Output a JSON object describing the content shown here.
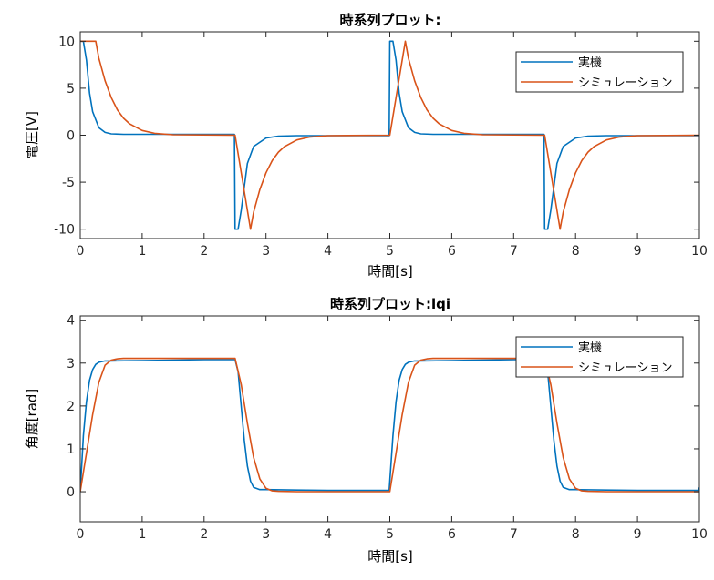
{
  "colors": {
    "real": "#0072BD",
    "sim": "#D95319",
    "axis": "#262626"
  },
  "chart_data": [
    {
      "type": "line",
      "title": "時系列プロット:",
      "xlabel": "時間[s]",
      "ylabel": "電圧[V]",
      "xlim": [
        0,
        10
      ],
      "ylim": [
        -11,
        11
      ],
      "xticks": [
        0,
        1,
        2,
        3,
        4,
        5,
        6,
        7,
        8,
        9,
        10
      ],
      "yticks": [
        -10,
        -5,
        0,
        5,
        10
      ],
      "legend": {
        "position": "top-right",
        "entries": [
          "実機",
          "シミュレーション"
        ]
      },
      "series": [
        {
          "name": "実機",
          "color": "#0072BD",
          "x": [
            0,
            0.05,
            0.1,
            0.15,
            0.2,
            0.3,
            0.4,
            0.5,
            0.7,
            1.0,
            2.49,
            2.5,
            2.55,
            2.6,
            2.7,
            2.8,
            3.0,
            3.2,
            3.5,
            4.99,
            5.0,
            5.05,
            5.1,
            5.15,
            5.2,
            5.3,
            5.4,
            5.5,
            5.7,
            6.0,
            7.49,
            7.5,
            7.55,
            7.6,
            7.7,
            7.8,
            8.0,
            8.2,
            8.5,
            10.0
          ],
          "y": [
            10,
            10,
            8,
            4.5,
            2.5,
            0.8,
            0.3,
            0.15,
            0.1,
            0.1,
            0.1,
            -10,
            -10,
            -8,
            -3,
            -1.2,
            -0.3,
            -0.1,
            -0.05,
            -0.05,
            10,
            10,
            8,
            4.5,
            2.5,
            0.8,
            0.3,
            0.15,
            0.1,
            0.1,
            0.1,
            -10,
            -10,
            -8,
            -3,
            -1.2,
            -0.3,
            -0.1,
            -0.05,
            -0.05
          ]
        },
        {
          "name": "シミュレーション",
          "color": "#D95319",
          "x": [
            0,
            0.25,
            0.3,
            0.4,
            0.5,
            0.6,
            0.7,
            0.8,
            1.0,
            1.2,
            1.5,
            2.5,
            2.75,
            2.8,
            2.9,
            3.0,
            3.1,
            3.2,
            3.3,
            3.5,
            3.7,
            4.0,
            5.0,
            5.25,
            5.3,
            5.4,
            5.5,
            5.6,
            5.7,
            5.8,
            6.0,
            6.2,
            6.5,
            7.5,
            7.75,
            7.8,
            7.9,
            8.0,
            8.1,
            8.2,
            8.3,
            8.5,
            8.7,
            9.0,
            10.0
          ],
          "y": [
            10,
            10,
            8.2,
            5.8,
            4.0,
            2.7,
            1.8,
            1.2,
            0.5,
            0.2,
            0.05,
            0,
            -10,
            -8.2,
            -5.8,
            -4.0,
            -2.7,
            -1.8,
            -1.2,
            -0.5,
            -0.2,
            -0.05,
            0,
            10,
            8.2,
            5.8,
            4.0,
            2.7,
            1.8,
            1.2,
            0.5,
            0.2,
            0.05,
            0,
            -10,
            -8.2,
            -5.8,
            -4.0,
            -2.7,
            -1.8,
            -1.2,
            -0.5,
            -0.2,
            -0.05,
            0
          ]
        }
      ]
    },
    {
      "type": "line",
      "title": "時系列プロット:lqi",
      "xlabel": "時間[s]",
      "ylabel": "角度[rad]",
      "xlim": [
        0,
        10
      ],
      "ylim": [
        -0.7,
        4.1
      ],
      "xticks": [
        0,
        1,
        2,
        3,
        4,
        5,
        6,
        7,
        8,
        9,
        10
      ],
      "yticks": [
        0,
        1,
        2,
        3,
        4
      ],
      "legend": {
        "position": "top-right",
        "entries": [
          "実機",
          "シミュレーション"
        ]
      },
      "series": [
        {
          "name": "実機",
          "color": "#0072BD",
          "x": [
            0,
            0.05,
            0.1,
            0.15,
            0.2,
            0.25,
            0.3,
            0.4,
            0.5,
            1.0,
            2.0,
            2.5,
            2.55,
            2.6,
            2.65,
            2.7,
            2.75,
            2.8,
            2.9,
            3.0,
            3.5,
            4.0,
            4.99,
            5.05,
            5.1,
            5.15,
            5.2,
            5.25,
            5.3,
            5.4,
            5.5,
            6.0,
            7.0,
            7.5,
            7.55,
            7.6,
            7.65,
            7.7,
            7.75,
            7.8,
            7.9,
            8.0,
            8.5,
            9.0,
            9.99,
            10.0
          ],
          "y": [
            0,
            1.3,
            2.1,
            2.6,
            2.85,
            2.97,
            3.02,
            3.05,
            3.05,
            3.06,
            3.08,
            3.08,
            2.8,
            2.0,
            1.2,
            0.6,
            0.25,
            0.1,
            0.05,
            0.05,
            0.04,
            0.03,
            0.03,
            1.3,
            2.1,
            2.6,
            2.85,
            2.97,
            3.02,
            3.05,
            3.05,
            3.06,
            3.08,
            3.08,
            2.8,
            2.0,
            1.2,
            0.6,
            0.25,
            0.1,
            0.05,
            0.05,
            0.04,
            0.03,
            0.03,
            0.1
          ]
        },
        {
          "name": "シミュレーション",
          "color": "#D95319",
          "x": [
            0,
            0.1,
            0.2,
            0.3,
            0.4,
            0.5,
            0.6,
            0.7,
            1.0,
            2.5,
            2.6,
            2.7,
            2.8,
            2.9,
            3.0,
            3.1,
            3.2,
            3.5,
            5.0,
            5.1,
            5.2,
            5.3,
            5.4,
            5.5,
            5.6,
            5.7,
            6.0,
            7.5,
            7.6,
            7.7,
            7.8,
            7.9,
            8.0,
            8.1,
            8.2,
            8.5,
            10.0
          ],
          "y": [
            0,
            0.9,
            1.8,
            2.55,
            2.95,
            3.07,
            3.1,
            3.11,
            3.11,
            3.11,
            2.5,
            1.6,
            0.8,
            0.3,
            0.08,
            0.02,
            0.01,
            0,
            0,
            0.9,
            1.8,
            2.55,
            2.95,
            3.07,
            3.1,
            3.11,
            3.11,
            3.11,
            2.5,
            1.6,
            0.8,
            0.3,
            0.08,
            0.02,
            0.01,
            0,
            0
          ]
        }
      ]
    }
  ]
}
